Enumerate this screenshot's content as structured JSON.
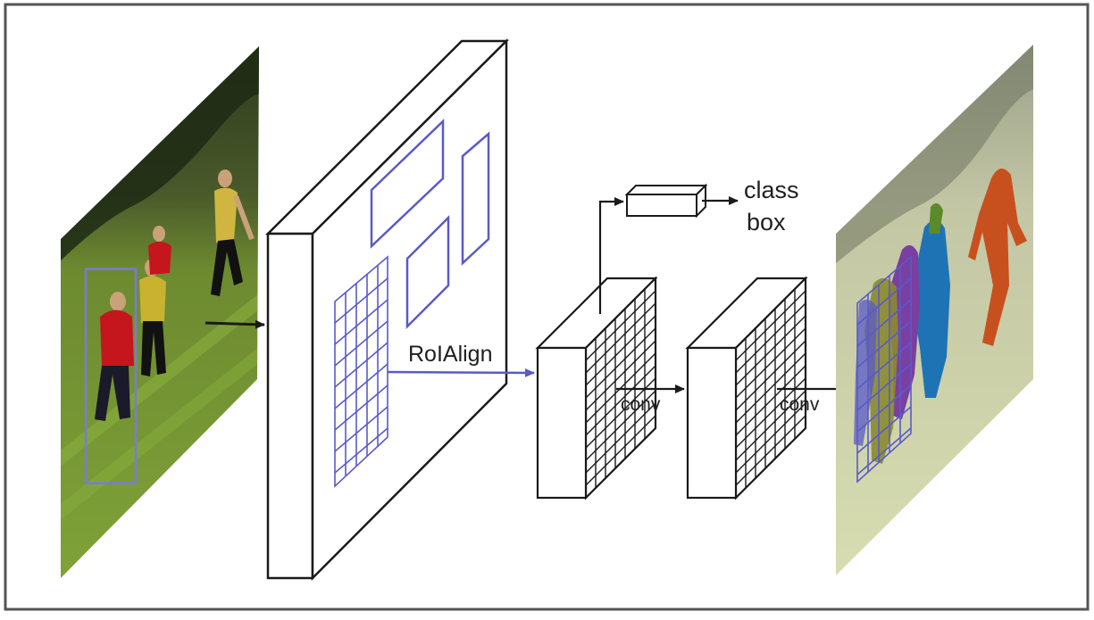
{
  "diagram": {
    "labels": {
      "roi_align": "RoIAlign",
      "conv_first": "conv",
      "conv_second": "conv",
      "class": "class",
      "box": "box"
    },
    "colors": {
      "frame": "#555555",
      "line": "#1a1a1a",
      "roi_blue": "#5a5ac8",
      "person_blue": "#1e73b4",
      "person_orange": "#c8501e",
      "person_purple": "#7a3fa0",
      "person_olive": "#8a8a30",
      "person_green": "#5a8a2a"
    }
  }
}
